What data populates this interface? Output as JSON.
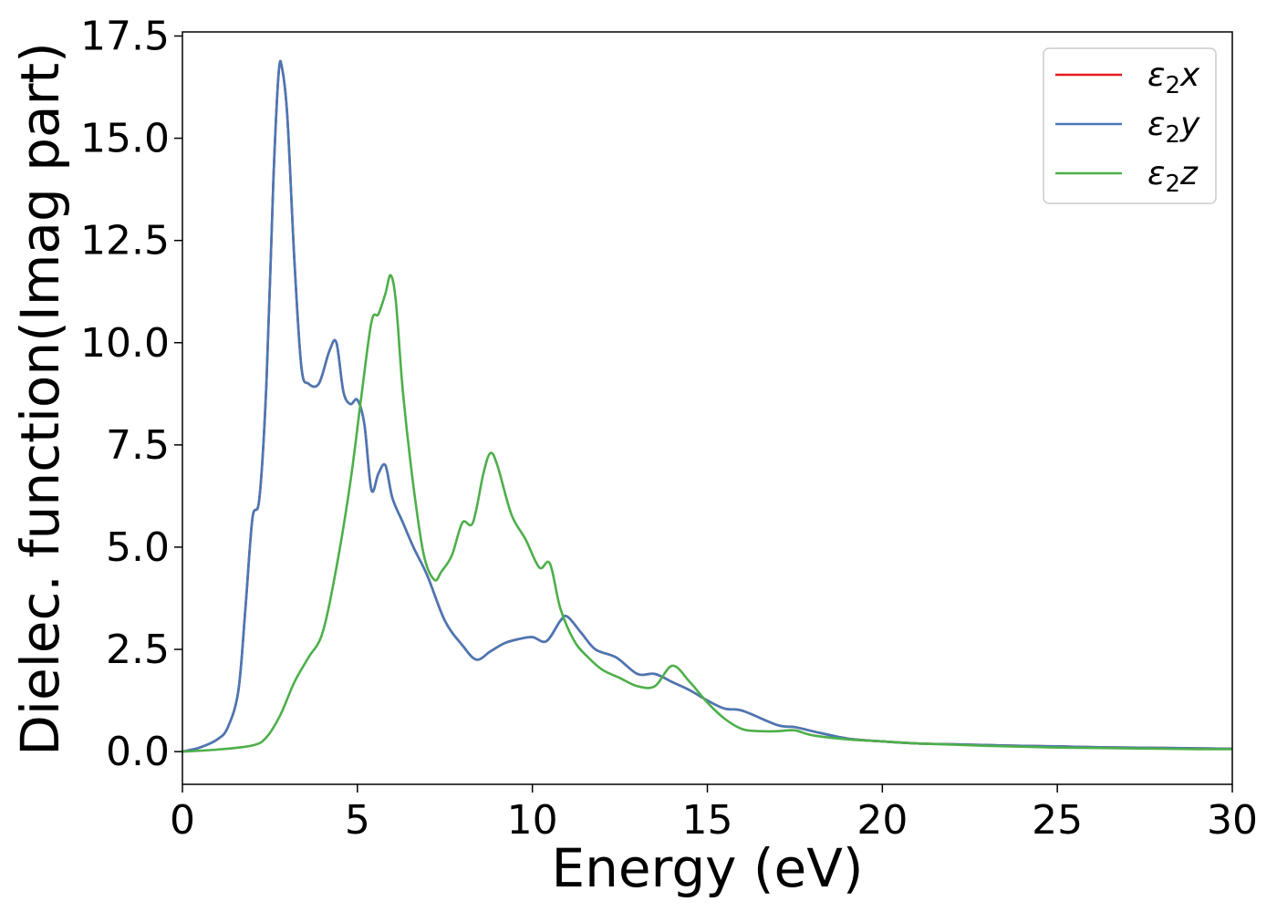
{
  "chart_data": {
    "type": "line",
    "xlabel": "Energy (eV)",
    "ylabel": "Dielec. function(Imag part)",
    "xlim": [
      0,
      30
    ],
    "ylim": [
      -0.8,
      17.6
    ],
    "xticks": [
      0,
      5,
      10,
      15,
      20,
      25,
      30
    ],
    "xtick_labels": [
      "0",
      "5",
      "10",
      "15",
      "20",
      "25",
      "30"
    ],
    "yticks": [
      0.0,
      2.5,
      5.0,
      7.5,
      10.0,
      12.5,
      15.0,
      17.5
    ],
    "ytick_labels": [
      "0.0",
      "2.5",
      "5.0",
      "7.5",
      "10.0",
      "12.5",
      "15.0",
      "17.5"
    ],
    "grid": false,
    "legend_position": "top-right",
    "series": [
      {
        "name": "ε₂x",
        "legend_base": "ε",
        "legend_sub": "2",
        "legend_tail": "x",
        "color": "#e41a1c",
        "x": [
          0,
          0.5,
          1.0,
          1.3,
          1.6,
          1.8,
          2.0,
          2.2,
          2.4,
          2.6,
          2.75,
          2.85,
          3.0,
          3.2,
          3.4,
          3.6,
          3.9,
          4.2,
          4.4,
          4.6,
          4.8,
          5.0,
          5.2,
          5.4,
          5.6,
          5.8,
          6.0,
          6.3,
          6.6,
          7.0,
          7.5,
          8.0,
          8.4,
          8.8,
          9.2,
          9.6,
          10.0,
          10.4,
          10.8,
          11.0,
          11.4,
          11.8,
          12.4,
          13.0,
          13.5,
          14.0,
          14.5,
          15.0,
          15.5,
          16.0,
          17.0,
          17.5,
          18.0,
          19.0,
          20.0,
          21.0,
          22.0,
          23.0,
          24.0,
          25.0,
          26.0,
          27.0,
          28.0,
          29.0,
          30.0
        ],
        "values": [
          0.0,
          0.1,
          0.3,
          0.6,
          1.5,
          3.5,
          5.7,
          6.2,
          9.0,
          14.0,
          16.6,
          16.7,
          15.5,
          12.0,
          9.4,
          9.0,
          9.0,
          9.8,
          10.0,
          8.8,
          8.5,
          8.6,
          8.0,
          6.4,
          6.8,
          7.0,
          6.2,
          5.6,
          5.0,
          4.3,
          3.2,
          2.6,
          2.25,
          2.45,
          2.65,
          2.75,
          2.8,
          2.7,
          3.2,
          3.3,
          2.9,
          2.5,
          2.3,
          1.9,
          1.9,
          1.7,
          1.5,
          1.25,
          1.05,
          1.0,
          0.65,
          0.6,
          0.5,
          0.32,
          0.25,
          0.2,
          0.18,
          0.16,
          0.14,
          0.13,
          0.11,
          0.1,
          0.09,
          0.08,
          0.07
        ]
      },
      {
        "name": "ε₂y",
        "legend_base": "ε",
        "legend_sub": "2",
        "legend_tail": "y",
        "color": "#4878b6",
        "x": [
          0,
          0.5,
          1.0,
          1.3,
          1.6,
          1.8,
          2.0,
          2.2,
          2.4,
          2.6,
          2.75,
          2.85,
          3.0,
          3.2,
          3.4,
          3.6,
          3.9,
          4.2,
          4.4,
          4.6,
          4.8,
          5.0,
          5.2,
          5.4,
          5.6,
          5.8,
          6.0,
          6.3,
          6.6,
          7.0,
          7.5,
          8.0,
          8.4,
          8.8,
          9.2,
          9.6,
          10.0,
          10.4,
          10.8,
          11.0,
          11.4,
          11.8,
          12.4,
          13.0,
          13.5,
          14.0,
          14.5,
          15.0,
          15.5,
          16.0,
          17.0,
          17.5,
          18.0,
          19.0,
          20.0,
          21.0,
          22.0,
          23.0,
          24.0,
          25.0,
          26.0,
          27.0,
          28.0,
          29.0,
          30.0
        ],
        "values": [
          0.0,
          0.1,
          0.3,
          0.6,
          1.5,
          3.5,
          5.7,
          6.2,
          9.0,
          14.0,
          16.6,
          16.7,
          15.5,
          12.0,
          9.4,
          9.0,
          9.0,
          9.8,
          10.0,
          8.8,
          8.5,
          8.6,
          8.0,
          6.4,
          6.8,
          7.0,
          6.2,
          5.6,
          5.0,
          4.3,
          3.2,
          2.6,
          2.25,
          2.45,
          2.65,
          2.75,
          2.8,
          2.7,
          3.2,
          3.3,
          2.9,
          2.5,
          2.3,
          1.9,
          1.9,
          1.7,
          1.5,
          1.25,
          1.05,
          1.0,
          0.65,
          0.6,
          0.5,
          0.32,
          0.25,
          0.2,
          0.18,
          0.16,
          0.14,
          0.13,
          0.11,
          0.1,
          0.09,
          0.08,
          0.07
        ]
      },
      {
        "name": "ε₂z",
        "legend_base": "ε",
        "legend_sub": "2",
        "legend_tail": "z",
        "color": "#4daf4a",
        "x": [
          0,
          1.0,
          2.0,
          2.4,
          2.8,
          3.2,
          3.6,
          4.0,
          4.4,
          4.8,
          5.1,
          5.4,
          5.6,
          5.8,
          5.95,
          6.1,
          6.3,
          6.6,
          6.9,
          7.2,
          7.4,
          7.7,
          8.0,
          8.3,
          8.6,
          8.8,
          9.0,
          9.4,
          9.8,
          10.2,
          10.5,
          10.8,
          11.2,
          11.6,
          12.0,
          12.5,
          13.0,
          13.5,
          14.0,
          14.5,
          15.0,
          15.5,
          16.0,
          16.5,
          17.0,
          17.5,
          18.0,
          19.0,
          20.0,
          21.0,
          22.0,
          23.0,
          24.0,
          25.0,
          26.0,
          27.0,
          28.0,
          29.0,
          30.0
        ],
        "values": [
          0.0,
          0.05,
          0.15,
          0.35,
          0.9,
          1.7,
          2.3,
          2.9,
          4.5,
          6.6,
          8.6,
          10.5,
          10.7,
          11.2,
          11.65,
          11.0,
          8.8,
          6.5,
          4.8,
          4.2,
          4.4,
          4.8,
          5.6,
          5.6,
          6.8,
          7.3,
          7.0,
          5.8,
          5.2,
          4.5,
          4.6,
          3.5,
          2.7,
          2.3,
          2.0,
          1.8,
          1.6,
          1.6,
          2.1,
          1.7,
          1.2,
          0.8,
          0.55,
          0.5,
          0.5,
          0.52,
          0.4,
          0.3,
          0.25,
          0.2,
          0.17,
          0.14,
          0.12,
          0.1,
          0.09,
          0.08,
          0.07,
          0.06,
          0.06
        ]
      }
    ]
  }
}
